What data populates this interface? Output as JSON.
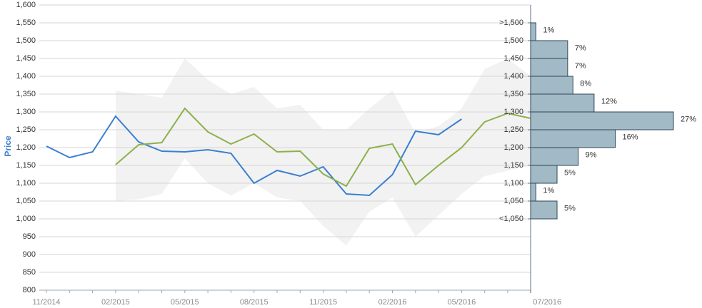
{
  "chart_data": [
    {
      "type": "line",
      "y_label": "Price",
      "categories": [
        "11/2014",
        null,
        null,
        "02/2015",
        null,
        null,
        "05/2015",
        null,
        null,
        "08/2015",
        null,
        null,
        "11/2015",
        null,
        null,
        "02/2016",
        null,
        null,
        "05/2016",
        null,
        null,
        "07/2016"
      ],
      "ylim": [
        800,
        1600
      ],
      "yticks": [
        {
          "value": 800,
          "label": "800"
        },
        {
          "value": 850,
          "label": "850"
        },
        {
          "value": 900,
          "label": "900"
        },
        {
          "value": 950,
          "label": "950"
        },
        {
          "value": 1000,
          "label": "1,000"
        },
        {
          "value": 1050,
          "label": "1,050"
        },
        {
          "value": 1100,
          "label": "1,100"
        },
        {
          "value": 1150,
          "label": "1,150"
        },
        {
          "value": 1200,
          "label": "1,200"
        },
        {
          "value": 1250,
          "label": "1,250"
        },
        {
          "value": 1300,
          "label": "1,300"
        },
        {
          "value": 1350,
          "label": "1,350"
        },
        {
          "value": 1400,
          "label": "1,400"
        },
        {
          "value": 1450,
          "label": "1,450"
        },
        {
          "value": 1500,
          "label": "1,500"
        },
        {
          "value": 1550,
          "label": "1,550"
        },
        {
          "value": 1600,
          "label": "1,600"
        }
      ],
      "grid": true,
      "band": {
        "color": "#f2f2f2",
        "upper": [
          null,
          null,
          null,
          1360,
          1350,
          1340,
          1450,
          1390,
          1350,
          1370,
          1310,
          1320,
          1250,
          1250,
          1310,
          1360,
          1240,
          1260,
          1310,
          1420,
          1450,
          1400
        ],
        "lower": [
          null,
          null,
          null,
          1050,
          1055,
          1070,
          1170,
          1100,
          1065,
          1100,
          1060,
          1050,
          980,
          925,
          1020,
          1060,
          950,
          1010,
          1070,
          1120,
          1135,
          1150
        ]
      },
      "series": [
        {
          "color": "#3a7fd0",
          "values": [
            1204,
            1172,
            1188,
            1288,
            1216,
            1190,
            1188,
            1194,
            1184,
            1100,
            1136,
            1120,
            1146,
            1070,
            1066,
            1124,
            1246,
            1236,
            1280,
            null,
            null,
            null
          ]
        },
        {
          "color": "#8db04b",
          "values": [
            null,
            null,
            null,
            1152,
            1208,
            1214,
            1310,
            1244,
            1210,
            1238,
            1188,
            1190,
            1126,
            1092,
            1198,
            1210,
            1096,
            1150,
            1200,
            1272,
            1296,
            1282
          ]
        }
      ]
    },
    {
      "type": "histogram",
      "orientation": "horizontal",
      "color": "#a2b9c6",
      "bins": [
        1000,
        1050,
        1100,
        1150,
        1200,
        1250,
        1300,
        1350,
        1400,
        1450,
        1500,
        1550
      ],
      "values": [
        5,
        1,
        5,
        9,
        16,
        27,
        12,
        8,
        7,
        7,
        1
      ],
      "value_labels": [
        "5%",
        "1%",
        "5%",
        "9%",
        "16%",
        "27%",
        "12%",
        "8%",
        "7%",
        "7%",
        "1%"
      ],
      "xlim": [
        0,
        27
      ],
      "ylim": [
        800,
        1600
      ],
      "yticks": [
        {
          "value": 1000,
          "label": "<1,050"
        },
        {
          "value": 1050,
          "label": "1,050"
        },
        {
          "value": 1100,
          "label": "1,100"
        },
        {
          "value": 1150,
          "label": "1,150"
        },
        {
          "value": 1200,
          "label": "1,200"
        },
        {
          "value": 1250,
          "label": "1,250"
        },
        {
          "value": 1300,
          "label": "1,300"
        },
        {
          "value": 1350,
          "label": "1,350"
        },
        {
          "value": 1400,
          "label": "1,400"
        },
        {
          "value": 1450,
          "label": "1,450"
        },
        {
          "value": 1500,
          "label": "1,500"
        },
        {
          "value": 1550,
          "label": ">1,500"
        }
      ]
    }
  ]
}
